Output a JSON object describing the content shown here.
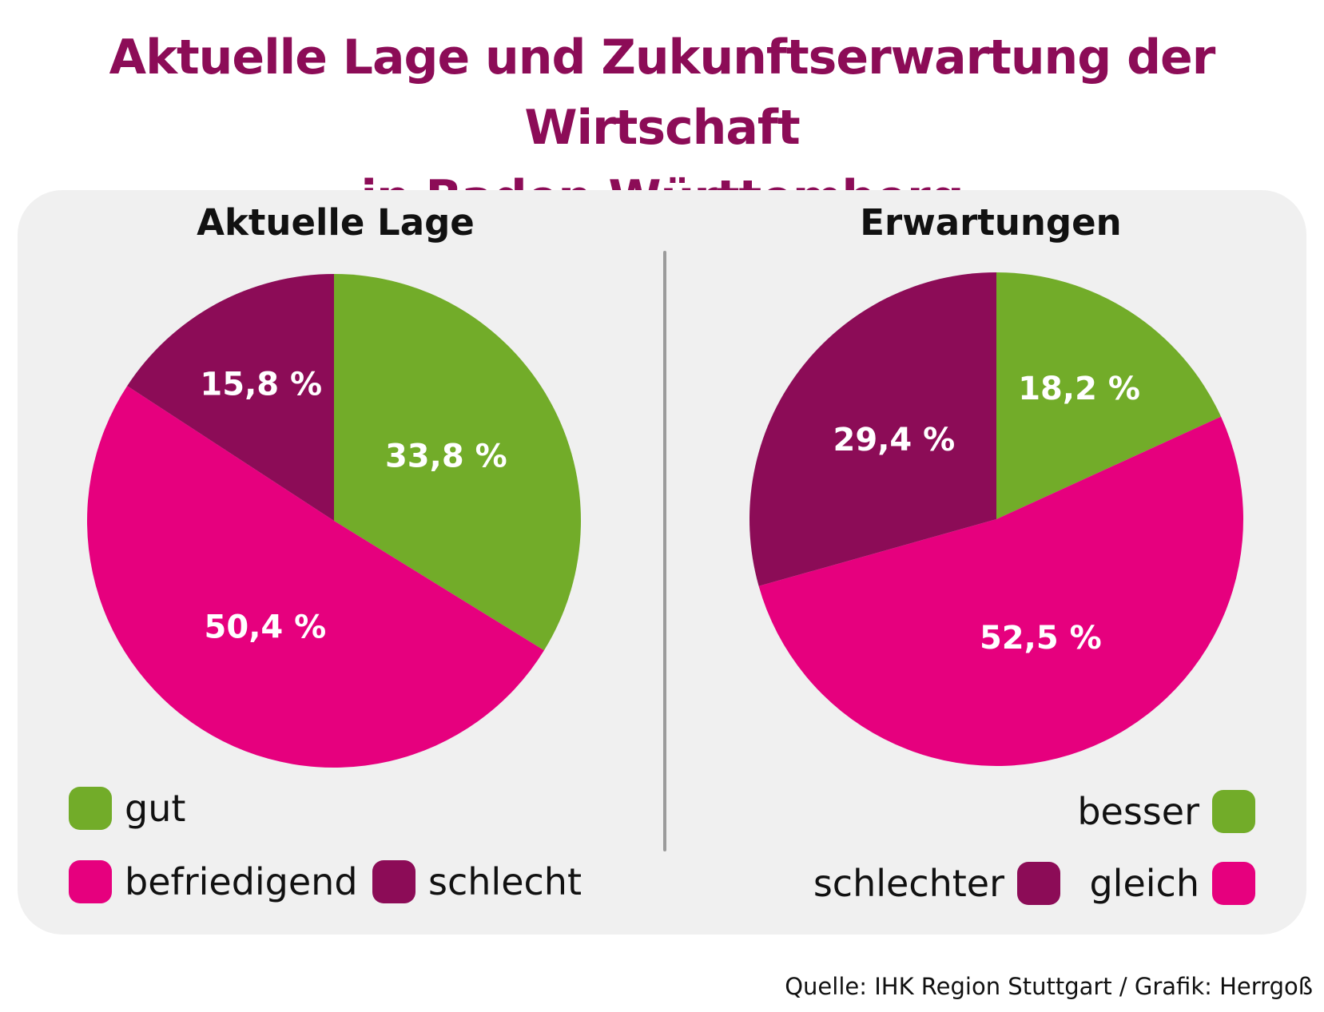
{
  "title_line1": "Aktuelle Lage und Zukunftserwartung der Wirtschaft",
  "title_line2": "in Baden-Württemberg",
  "source": "Quelle: IHK Region Stuttgart / Grafik: Herrgoß",
  "colors": {
    "green": "#72ac29",
    "pink": "#e6007e",
    "purple": "#8c0c57",
    "title": "#8c0c57"
  },
  "chart_data": [
    {
      "type": "pie",
      "title": "Aktuelle Lage",
      "slices": [
        {
          "label": "gut",
          "value": 33.8,
          "value_label": "33,8 %",
          "color": "#72ac29"
        },
        {
          "label": "befriedigend",
          "value": 50.4,
          "value_label": "50,4 %",
          "color": "#e6007e"
        },
        {
          "label": "schlecht",
          "value": 15.8,
          "value_label": "15,8 %",
          "color": "#8c0c57"
        }
      ],
      "legend": [
        "gut",
        "befriedigend",
        "schlecht"
      ]
    },
    {
      "type": "pie",
      "title": "Erwartungen",
      "slices": [
        {
          "label": "besser",
          "value": 18.2,
          "value_label": "18,2 %",
          "color": "#72ac29"
        },
        {
          "label": "gleich",
          "value": 52.5,
          "value_label": "52,5 %",
          "color": "#e6007e"
        },
        {
          "label": "schlechter",
          "value": 29.4,
          "value_label": "29,4 %",
          "color": "#8c0c57"
        }
      ],
      "legend": [
        "besser",
        "schlechter",
        "gleich"
      ]
    }
  ]
}
